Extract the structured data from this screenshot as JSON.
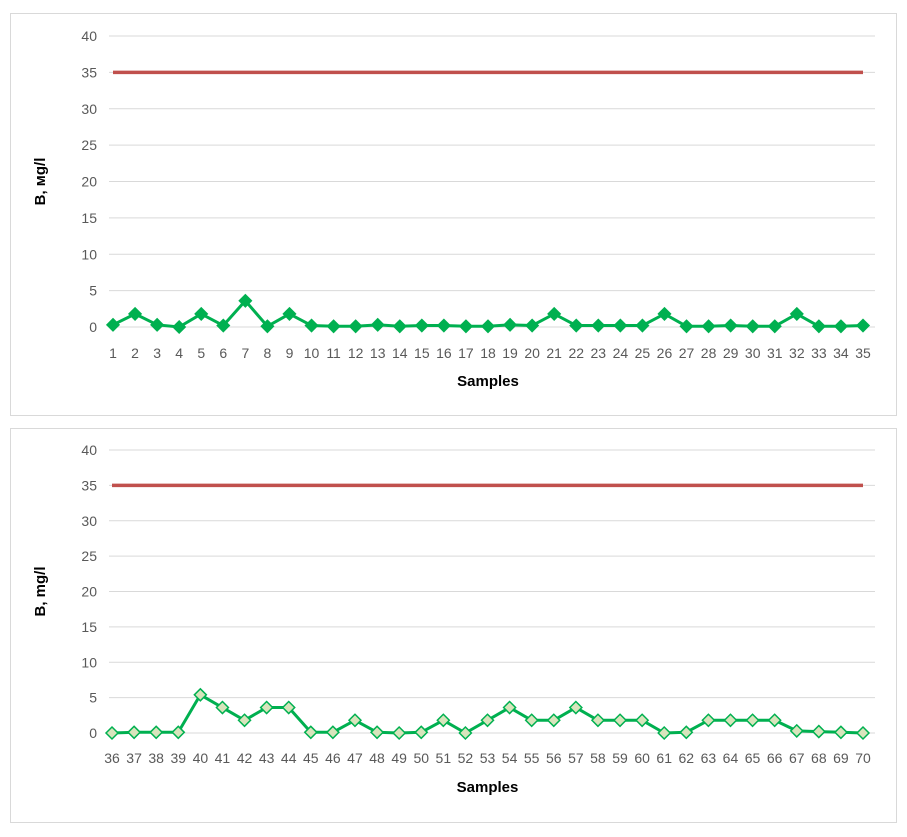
{
  "colors": {
    "threshold_line": "#c0504d",
    "series_line": "#00b050",
    "marker_fill_top": "#00b050",
    "marker_fill_bottom": "#d8e4bc",
    "marker_stroke": "#00b050",
    "gridline": "#d9d9d9",
    "tick_text": "#595959"
  },
  "chart_data": [
    {
      "type": "line",
      "xlabel": "Samples",
      "ylabel": "B, мg/l",
      "ylim": [
        0,
        40
      ],
      "yticks": [
        0,
        5,
        10,
        15,
        20,
        25,
        30,
        35,
        40
      ],
      "grid": true,
      "categories": [
        "1",
        "2",
        "3",
        "4",
        "5",
        "6",
        "7",
        "8",
        "9",
        "10",
        "11",
        "12",
        "13",
        "14",
        "15",
        "16",
        "17",
        "18",
        "19",
        "20",
        "21",
        "22",
        "23",
        "24",
        "25",
        "26",
        "27",
        "28",
        "29",
        "30",
        "31",
        "32",
        "33",
        "34",
        "35"
      ],
      "series": [
        {
          "marker": "diamond-filled",
          "values": [
            0.3,
            1.8,
            0.3,
            0,
            1.8,
            0.2,
            3.6,
            0.1,
            1.8,
            0.2,
            0.1,
            0.1,
            0.3,
            0.1,
            0.2,
            0.2,
            0.1,
            0.1,
            0.3,
            0.2,
            1.8,
            0.2,
            0.2,
            0.2,
            0.2,
            1.8,
            0.1,
            0.1,
            0.2,
            0.1,
            0.1,
            1.8,
            0.1,
            0.1,
            0.2
          ]
        },
        {
          "marker": "none",
          "values": [
            35,
            35,
            35,
            35,
            35,
            35,
            35,
            35,
            35,
            35,
            35,
            35,
            35,
            35,
            35,
            35,
            35,
            35,
            35,
            35,
            35,
            35,
            35,
            35,
            35,
            35,
            35,
            35,
            35,
            35,
            35,
            35,
            35,
            35,
            35
          ]
        }
      ]
    },
    {
      "type": "line",
      "xlabel": "Samples",
      "ylabel": "B, mg/l",
      "ylim": [
        0,
        40
      ],
      "yticks": [
        0,
        5,
        10,
        15,
        20,
        25,
        30,
        35,
        40
      ],
      "grid": true,
      "categories": [
        "36",
        "37",
        "38",
        "39",
        "40",
        "41",
        "42",
        "43",
        "44",
        "45",
        "46",
        "47",
        "48",
        "49",
        "50",
        "51",
        "52",
        "53",
        "54",
        "55",
        "56",
        "57",
        "58",
        "59",
        "60",
        "61",
        "62",
        "63",
        "64",
        "65",
        "66",
        "67",
        "68",
        "69",
        "70"
      ],
      "series": [
        {
          "marker": "diamond-hollow",
          "values": [
            0,
            0.1,
            0.1,
            0.1,
            5.4,
            3.6,
            1.8,
            3.6,
            3.6,
            0.1,
            0.1,
            1.8,
            0.1,
            0,
            0.1,
            1.8,
            0,
            1.8,
            3.6,
            1.8,
            1.8,
            3.6,
            1.8,
            1.8,
            1.8,
            0,
            0.1,
            1.8,
            1.8,
            1.8,
            1.8,
            0.3,
            0.2,
            0.1,
            0
          ]
        },
        {
          "marker": "none",
          "values": [
            35,
            35,
            35,
            35,
            35,
            35,
            35,
            35,
            35,
            35,
            35,
            35,
            35,
            35,
            35,
            35,
            35,
            35,
            35,
            35,
            35,
            35,
            35,
            35,
            35,
            35,
            35,
            35,
            35,
            35,
            35,
            35,
            35,
            35,
            35
          ]
        }
      ]
    }
  ]
}
